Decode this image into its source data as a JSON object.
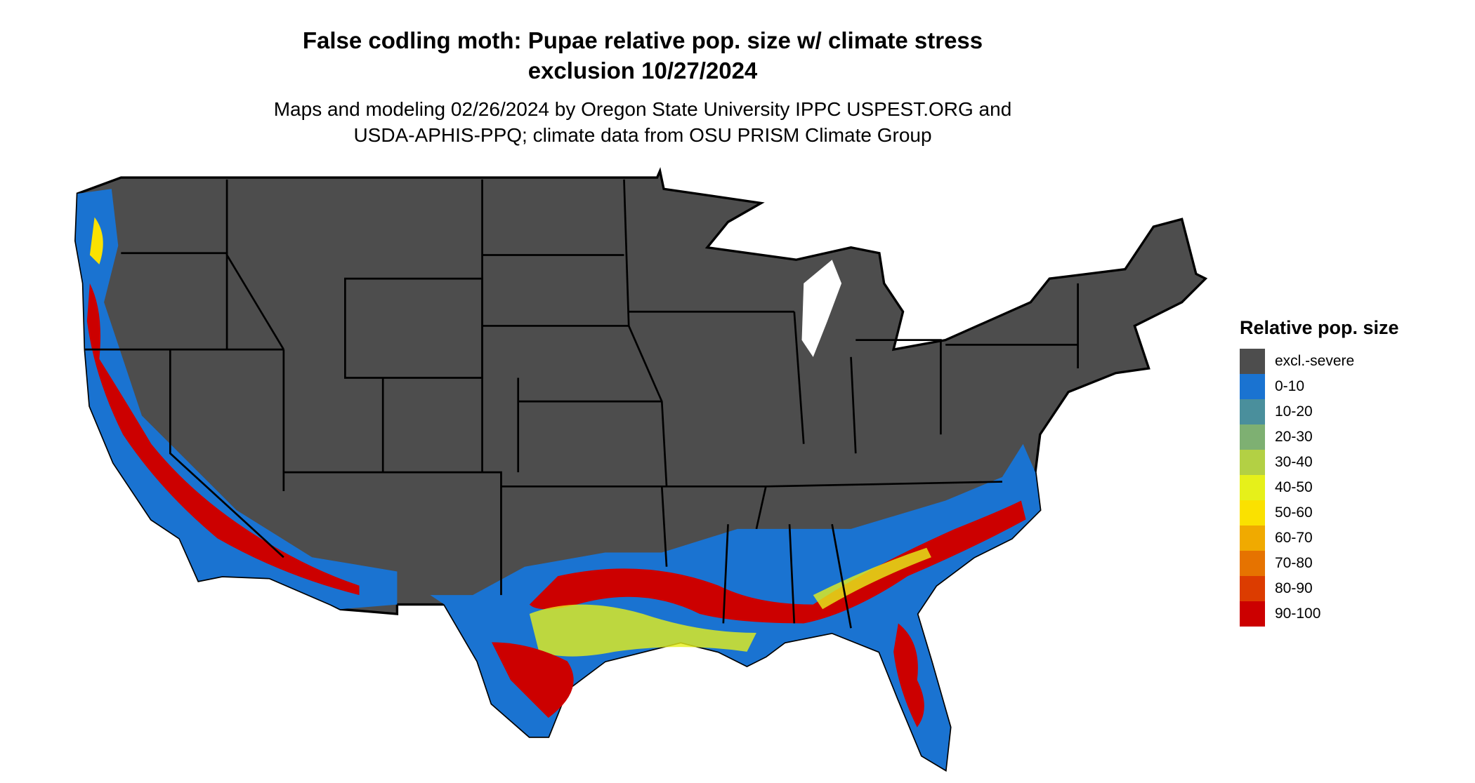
{
  "title": "False codling moth: Pupae relative pop. size w/ climate stress exclusion 10/27/2024",
  "title_lines": [
    "False codling moth: Pupae relative pop. size w/ climate stress",
    "exclusion 10/27/2024"
  ],
  "subtitle_lines": [
    "Maps and modeling 02/26/2024 by Oregon State University IPPC USPEST.ORG and",
    "USDA-APHIS-PPQ; climate data from OSU PRISM Climate Group"
  ],
  "legend": {
    "title": "Relative pop. size",
    "placement": "right",
    "items": [
      {
        "label": "excl.-severe",
        "color": "#4d4d4d"
      },
      {
        "label": "0-10",
        "color": "#1a73d1"
      },
      {
        "label": "10-20",
        "color": "#4a8f9c"
      },
      {
        "label": "20-30",
        "color": "#7eb072"
      },
      {
        "label": "30-40",
        "color": "#b3d044"
      },
      {
        "label": "40-50",
        "color": "#e6f01a"
      },
      {
        "label": "50-60",
        "color": "#fae100"
      },
      {
        "label": "60-70",
        "color": "#f0aa00"
      },
      {
        "label": "70-80",
        "color": "#e67300"
      },
      {
        "label": "80-90",
        "color": "#dc3c00"
      },
      {
        "label": "90-100",
        "color": "#cc0000"
      }
    ]
  }
}
